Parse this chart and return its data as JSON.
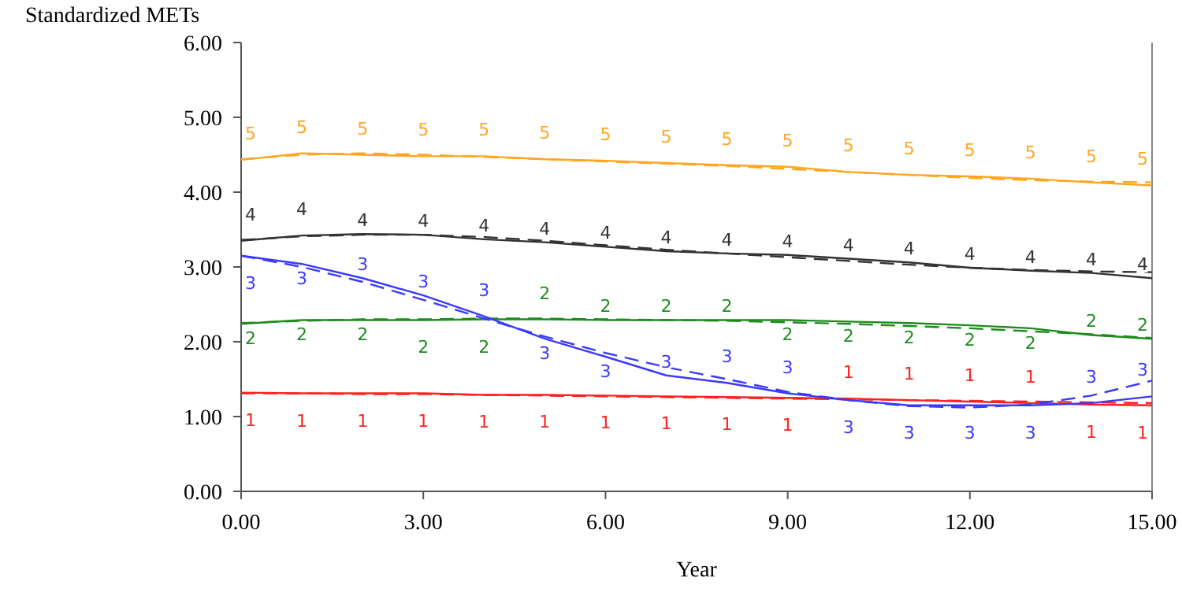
{
  "chart_data": {
    "type": "line",
    "ylabel": "Standardized METs",
    "xlabel": "Year",
    "x": [
      0,
      1,
      2,
      3,
      4,
      5,
      6,
      7,
      8,
      9,
      10,
      11,
      12,
      13,
      14,
      15
    ],
    "xlim": [
      0,
      15
    ],
    "xticks": [
      {
        "value": 0,
        "label": "0.00"
      },
      {
        "value": 3,
        "label": "3.00"
      },
      {
        "value": 6,
        "label": "6.00"
      },
      {
        "value": 9,
        "label": "9.00"
      },
      {
        "value": 12,
        "label": "12.00"
      },
      {
        "value": 15,
        "label": "15.00"
      }
    ],
    "ylim": [
      0,
      6
    ],
    "yticks": [
      {
        "value": 0,
        "label": "0.00"
      },
      {
        "value": 1,
        "label": "1.00"
      },
      {
        "value": 2,
        "label": "2.00"
      },
      {
        "value": 3,
        "label": "3.00"
      },
      {
        "value": 4,
        "label": "4.00"
      },
      {
        "value": 5,
        "label": "5.00"
      },
      {
        "value": 6,
        "label": "6.00"
      }
    ],
    "grid": false,
    "legend": false,
    "series": [
      {
        "name": "1",
        "color": "#ff2020",
        "line_style": "solid",
        "values": [
          1.32,
          1.31,
          1.31,
          1.31,
          1.29,
          1.29,
          1.28,
          1.27,
          1.26,
          1.25,
          1.24,
          1.22,
          1.2,
          1.18,
          1.16,
          1.15
        ]
      },
      {
        "color": "#ff2020",
        "line_style": "dashed",
        "values": [
          1.31,
          1.31,
          1.3,
          1.3,
          1.29,
          1.28,
          1.27,
          1.26,
          1.25,
          1.24,
          1.23,
          1.22,
          1.21,
          1.2,
          1.19,
          1.18
        ]
      },
      {
        "name": "2",
        "color": "#1e8c1e",
        "line_style": "solid",
        "values": [
          2.24,
          2.29,
          2.29,
          2.29,
          2.3,
          2.3,
          2.29,
          2.29,
          2.29,
          2.29,
          2.27,
          2.25,
          2.22,
          2.18,
          2.09,
          2.04
        ]
      },
      {
        "color": "#1e8c1e",
        "line_style": "dashed",
        "values": [
          2.25,
          2.28,
          2.3,
          2.3,
          2.31,
          2.31,
          2.3,
          2.29,
          2.28,
          2.26,
          2.24,
          2.21,
          2.18,
          2.14,
          2.1,
          2.05
        ]
      },
      {
        "name": "3",
        "color": "#3a3aff",
        "line_style": "solid",
        "values": [
          3.15,
          3.04,
          2.85,
          2.62,
          2.34,
          2.04,
          1.8,
          1.55,
          1.45,
          1.31,
          1.22,
          1.15,
          1.15,
          1.15,
          1.18,
          1.27
        ]
      },
      {
        "color": "#3a3aff",
        "line_style": "dashed",
        "values": [
          3.15,
          3.0,
          2.8,
          2.56,
          2.31,
          2.07,
          1.85,
          1.66,
          1.5,
          1.33,
          1.22,
          1.14,
          1.12,
          1.16,
          1.28,
          1.48
        ]
      },
      {
        "name": "4",
        "color": "#333333",
        "line_style": "solid",
        "values": [
          3.35,
          3.42,
          3.44,
          3.43,
          3.37,
          3.33,
          3.27,
          3.21,
          3.18,
          3.16,
          3.11,
          3.06,
          2.99,
          2.95,
          2.92,
          2.85
        ]
      },
      {
        "color": "#333333",
        "line_style": "dashed",
        "values": [
          3.36,
          3.41,
          3.43,
          3.43,
          3.4,
          3.35,
          3.29,
          3.23,
          3.18,
          3.13,
          3.08,
          3.03,
          2.99,
          2.96,
          2.94,
          2.93
        ]
      },
      {
        "name": "5",
        "color": "#ffa620",
        "line_style": "solid",
        "values": [
          4.43,
          4.52,
          4.5,
          4.48,
          4.48,
          4.44,
          4.42,
          4.39,
          4.36,
          4.34,
          4.27,
          4.23,
          4.21,
          4.18,
          4.13,
          4.09
        ]
      },
      {
        "color": "#ffa620",
        "line_style": "dashed",
        "values": [
          4.44,
          4.5,
          4.52,
          4.5,
          4.47,
          4.44,
          4.41,
          4.38,
          4.35,
          4.31,
          4.27,
          4.23,
          4.19,
          4.16,
          4.14,
          4.13
        ]
      }
    ]
  }
}
